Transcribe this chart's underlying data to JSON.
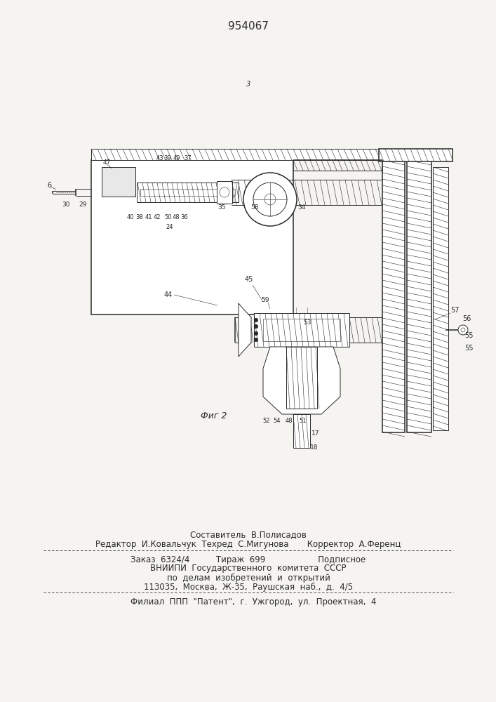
{
  "patent_number": "954067",
  "bg": "#f5f4f0",
  "lc": "#2a2a2a",
  "fig_caption": "Фиг 2",
  "footer_line1": "Составитель  В.Полисадов",
  "footer_line2": "Редактор  И.Ковальчук  Техред  С.Мигунова       Корректор  А.Ференц",
  "footer_line3": "Заказ  6324/4          Тираж  699                    Подписное",
  "footer_line4": "ВНИИПИ  Государственного  комитета  СССР",
  "footer_line5": "по  делам  изобретений  и  открытий",
  "footer_line6": "113035,  Москва,  Ж-35,  Раушская  наб.,  д.  4/5",
  "footer_line7": "    Филиал  ППП  \"Патент\",  г.  Ужгород,  ул.  Проектная,  4"
}
